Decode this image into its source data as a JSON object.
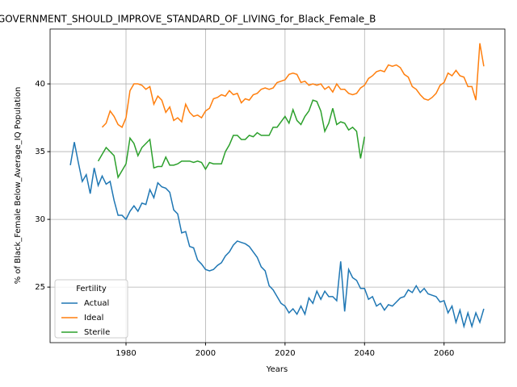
{
  "chart_data": {
    "type": "line",
    "title": "GOVERNMENT_SHOULD_IMPROVE_STANDARD_OF_LIVING_for_Black_Female_B",
    "xlabel": "Years",
    "ylabel": "% of Black_Female Below_Average_IQ Population",
    "x": [
      1966,
      1967,
      1968,
      1969,
      1970,
      1971,
      1972,
      1973,
      1974,
      1975,
      1976,
      1977,
      1978,
      1979,
      1980,
      1981,
      1982,
      1983,
      1984,
      1985,
      1986,
      1987,
      1988,
      1989,
      1990,
      1991,
      1992,
      1993,
      1994,
      1995,
      1996,
      1997,
      1998,
      1999,
      2000,
      2001,
      2002,
      2003,
      2004,
      2005,
      2006,
      2007,
      2008,
      2009,
      2010,
      2011,
      2012,
      2013,
      2014,
      2015,
      2016,
      2017,
      2018,
      2019,
      2020,
      2021,
      2022,
      2023,
      2024,
      2025,
      2026,
      2027,
      2028,
      2029,
      2030,
      2031,
      2032,
      2033,
      2034,
      2035,
      2036,
      2037,
      2038,
      2039,
      2040,
      2041,
      2042,
      2043,
      2044,
      2045,
      2046,
      2047,
      2048,
      2049,
      2050,
      2051,
      2052,
      2053,
      2054,
      2055,
      2056,
      2057,
      2058,
      2059,
      2060,
      2061,
      2062,
      2063,
      2064,
      2065,
      2066,
      2067,
      2068,
      2069,
      2070
    ],
    "series": [
      {
        "name": "Actual",
        "color": "#1f77b4",
        "values": [
          34.0,
          35.7,
          34.2,
          32.8,
          33.3,
          31.9,
          33.8,
          32.5,
          33.2,
          32.6,
          32.8,
          31.4,
          30.3,
          30.3,
          30.0,
          30.6,
          31.0,
          30.6,
          31.2,
          31.1,
          32.2,
          31.6,
          32.7,
          32.4,
          32.3,
          32.0,
          30.7,
          30.4,
          29.0,
          29.1,
          28.0,
          27.9,
          27.0,
          26.7,
          26.3,
          26.2,
          26.3,
          26.6,
          26.8,
          27.3,
          27.6,
          28.1,
          28.4,
          28.3,
          28.2,
          28.0,
          27.6,
          27.2,
          26.5,
          26.2,
          25.1,
          24.8,
          24.3,
          23.8,
          23.6,
          23.1,
          23.4,
          23.0,
          23.6,
          23.0,
          24.2,
          23.8,
          24.7,
          24.1,
          24.7,
          24.3,
          24.3,
          24.0,
          26.9,
          23.2,
          26.3,
          25.7,
          25.5,
          24.9,
          24.9,
          24.1,
          24.3,
          23.6,
          23.8,
          23.3,
          23.7,
          23.6,
          23.9,
          24.2,
          24.3,
          24.8,
          24.6,
          25.1,
          24.6,
          24.9,
          24.5,
          24.4,
          24.3,
          23.9,
          24.0,
          23.1,
          23.6,
          22.4,
          23.3,
          22.1,
          23.1,
          22.1,
          23.1,
          22.4,
          23.4
        ]
      },
      {
        "name": "Ideal",
        "color": "#ff7f0e",
        "values": [
          null,
          null,
          null,
          null,
          null,
          null,
          null,
          null,
          36.8,
          37.1,
          38.0,
          37.6,
          37.0,
          36.8,
          37.5,
          39.5,
          40.0,
          40.0,
          39.9,
          39.6,
          39.8,
          38.5,
          39.1,
          38.8,
          37.9,
          38.3,
          37.3,
          37.5,
          37.2,
          38.5,
          37.9,
          37.6,
          37.7,
          37.5,
          38.0,
          38.2,
          38.9,
          39.0,
          39.2,
          39.1,
          39.5,
          39.2,
          39.3,
          38.6,
          38.9,
          38.8,
          39.2,
          39.3,
          39.6,
          39.7,
          39.6,
          39.7,
          40.1,
          40.2,
          40.3,
          40.7,
          40.8,
          40.7,
          40.1,
          40.2,
          39.9,
          40.0,
          39.9,
          40.0,
          39.6,
          39.8,
          39.4,
          40.0,
          39.6,
          39.6,
          39.3,
          39.2,
          39.3,
          39.7,
          39.9,
          40.4,
          40.6,
          40.9,
          41.0,
          40.9,
          41.4,
          41.3,
          41.4,
          41.2,
          40.7,
          40.5,
          39.8,
          39.6,
          39.2,
          38.9,
          38.8,
          39.0,
          39.3,
          39.9,
          40.1,
          40.8,
          40.6,
          41.0,
          40.6,
          40.5,
          39.8,
          39.8,
          38.8,
          43.0,
          41.3
        ]
      },
      {
        "name": "Sterile",
        "color": "#2ca02c",
        "values": [
          null,
          null,
          null,
          null,
          null,
          null,
          null,
          34.3,
          34.8,
          35.3,
          35.0,
          34.7,
          33.1,
          33.6,
          34.1,
          36.0,
          35.6,
          34.7,
          35.3,
          35.6,
          35.9,
          33.8,
          33.9,
          33.9,
          34.6,
          34.0,
          34.0,
          34.1,
          34.3,
          34.3,
          34.3,
          34.2,
          34.3,
          34.2,
          33.7,
          34.2,
          34.1,
          34.1,
          34.1,
          35.0,
          35.5,
          36.2,
          36.2,
          35.9,
          35.9,
          36.2,
          36.1,
          36.4,
          36.2,
          36.2,
          36.2,
          36.8,
          36.8,
          37.2,
          37.6,
          37.1,
          38.1,
          37.3,
          37.0,
          37.6,
          38.0,
          38.8,
          38.7,
          38.0,
          36.5,
          37.1,
          38.2,
          37.0,
          37.2,
          37.1,
          36.6,
          36.8,
          36.5,
          34.5,
          36.1,
          null,
          null,
          null,
          null,
          null,
          null,
          null,
          null,
          null,
          null,
          null,
          null,
          null,
          null,
          null,
          null,
          null,
          null,
          null,
          null,
          null,
          null,
          null,
          null,
          null,
          null,
          null,
          null,
          null,
          null
        ]
      }
    ],
    "xlim": [
      1960.9,
      2075.3
    ],
    "ylim": [
      20.9,
      44.05
    ],
    "xticks": [
      1980,
      2000,
      2020,
      2040,
      2060
    ],
    "yticks": [
      25,
      30,
      35,
      40
    ],
    "grid": true,
    "legend_title": "Fertility",
    "legend": "lower left"
  }
}
